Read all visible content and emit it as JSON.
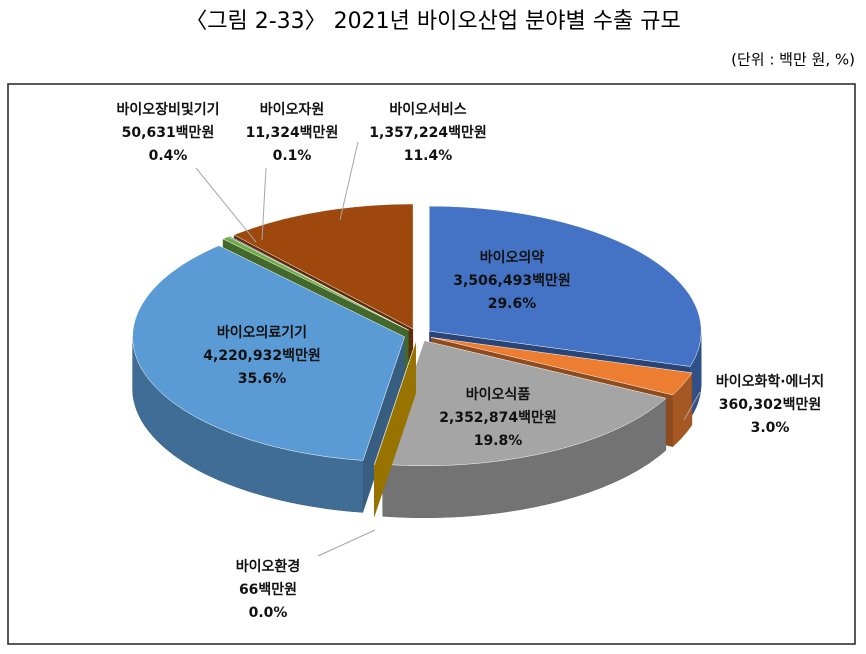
{
  "chart_data": {
    "type": "pie",
    "title": "〈그림 2-33〉 2021년 바이오산업 분야별 수출 규모",
    "unit_note": "(단위 : 백만 원, %)",
    "categories": [
      "바이오의약",
      "바이오화학·에너지",
      "바이오식품",
      "바이오환경",
      "바이오의료기기",
      "바이오장비및기기",
      "바이오자원",
      "바이오서비스"
    ],
    "values": [
      3506493,
      360302,
      2352874,
      66,
      4220932,
      50631,
      11324,
      1357224
    ],
    "value_labels": [
      "3,506,493백만원",
      "360,302백만원",
      "2,352,874백만원",
      "66백만원",
      "4,220,932백만원",
      "50,631백만원",
      "11,324백만원",
      "1,357,224백만원"
    ],
    "shares": [
      29.6,
      3.0,
      19.8,
      0.0,
      35.6,
      0.4,
      0.1,
      11.4
    ],
    "share_labels": [
      "29.6%",
      "3.0%",
      "19.8%",
      "0.0%",
      "35.6%",
      "0.4%",
      "0.1%",
      "11.4%"
    ],
    "colors": [
      "#4472c4",
      "#ed7d31",
      "#a5a5a5",
      "#ffc000",
      "#5b9bd5",
      "#70ad47",
      "#264478",
      "#9e480e"
    ]
  }
}
